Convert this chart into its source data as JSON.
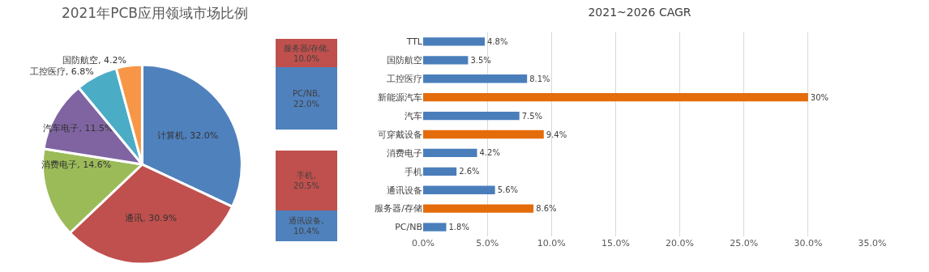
{
  "chart_data": [
    {
      "type": "pie",
      "title": "2021年PCB应用领域市场比例",
      "categories": [
        "计算机",
        "通讯",
        "消费电子",
        "汽车电子",
        "工控医疗",
        "国防航空"
      ],
      "values": [
        32.0,
        30.9,
        14.6,
        11.5,
        6.8,
        4.2
      ],
      "value_labels": [
        "32.0%",
        "30.9%",
        "14.6%",
        "11.5%",
        "6.8%",
        "4.2%"
      ],
      "colors": [
        "#4f81bd",
        "#c0504d",
        "#9bbb59",
        "#8064a2",
        "#4bacc6",
        "#f79646"
      ],
      "legend": false
    },
    {
      "type": "bar",
      "stacked": true,
      "categories": [
        null
      ],
      "tick_labels": false,
      "series": [
        {
          "color": "#4f81bd",
          "values": [
            22.0
          ],
          "value_labels": [
            "PC/NB, 22.0%"
          ]
        },
        {
          "color": "#c0504d",
          "values": [
            10.0
          ],
          "value_labels": [
            "服务器/存储, 10.0%"
          ]
        }
      ]
    },
    {
      "type": "bar",
      "stacked": true,
      "categories": [
        null
      ],
      "tick_labels": false,
      "series": [
        {
          "color": "#4f81bd",
          "values": [
            10.4
          ],
          "value_labels": [
            "通讯设备, 10.4%"
          ]
        },
        {
          "color": "#c0504d",
          "values": [
            20.5
          ],
          "value_labels": [
            "手机, 20.5%"
          ]
        }
      ]
    },
    {
      "type": "bar",
      "orientation": "horizontal",
      "title": "2021~2026 CAGR",
      "categories": [
        "TTL",
        "国防航空",
        "工控医疗",
        "新能源汽车",
        "汽车",
        "可穿戴设备",
        "消费电子",
        "手机",
        "通讯设备",
        "服务器/存储",
        "PC/NB"
      ],
      "values": [
        4.8,
        3.5,
        8.1,
        30,
        7.5,
        9.4,
        4.2,
        2.6,
        5.6,
        8.6,
        1.8
      ],
      "colors": [
        "#4a7ebb",
        "#4a7ebb",
        "#4a7ebb",
        "#e46c0a",
        "#4a7ebb",
        "#e46c0a",
        "#4a7ebb",
        "#4a7ebb",
        "#4a7ebb",
        "#e46c0a",
        "#4a7ebb"
      ],
      "value_labels": [
        "4.8%",
        "3.5%",
        "8.1%",
        "30%",
        "7.5%",
        "9.4%",
        "4.2%",
        "2.6%",
        "5.6%",
        "8.6%",
        "1.8%"
      ],
      "xlim": [
        0,
        35
      ],
      "xticks": [
        {
          "value": 0,
          "label": "0.0%"
        },
        {
          "value": 5,
          "label": "5.0%"
        },
        {
          "value": 10,
          "label": "10.0%"
        },
        {
          "value": 15,
          "label": "15.0%"
        },
        {
          "value": 20,
          "label": "20.0%"
        },
        {
          "value": 25,
          "label": "25.0%"
        },
        {
          "value": 30,
          "label": "30.0%"
        },
        {
          "value": 35,
          "label": "35.0%"
        }
      ],
      "grid": "x",
      "legend": false
    }
  ]
}
